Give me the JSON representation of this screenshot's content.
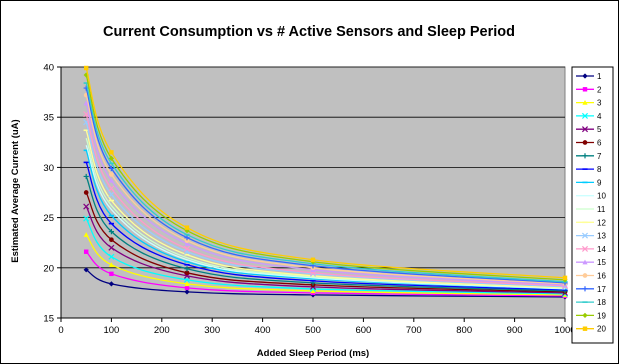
{
  "chart_data": {
    "type": "line",
    "title": "Current Consumption vs # Active Sensors and Sleep Period",
    "xlabel": "Added Sleep Period (ms)",
    "ylabel": "Estimated Average Current (uA)",
    "xlim": [
      0,
      1000
    ],
    "ylim": [
      15,
      40
    ],
    "xticks": [
      0,
      100,
      200,
      300,
      400,
      500,
      600,
      700,
      800,
      900,
      1000
    ],
    "yticks": [
      15,
      20,
      25,
      30,
      35,
      40
    ],
    "grid": "horizontal",
    "legend_position": "right",
    "x": [
      50,
      100,
      250,
      500,
      1000
    ],
    "series": [
      {
        "name": "1",
        "color": "#000080",
        "marker": "diamond",
        "values": [
          19.8,
          18.4,
          17.6,
          17.3,
          17.1
        ]
      },
      {
        "name": "2",
        "color": "#ff00ff",
        "marker": "square",
        "values": [
          21.6,
          19.4,
          18.0,
          17.5,
          17.2
        ]
      },
      {
        "name": "3",
        "color": "#ffff00",
        "marker": "triangle",
        "values": [
          23.3,
          20.3,
          18.4,
          17.7,
          17.3
        ]
      },
      {
        "name": "4",
        "color": "#00ffff",
        "marker": "x",
        "values": [
          24.9,
          21.1,
          18.8,
          17.9,
          17.4
        ]
      },
      {
        "name": "5",
        "color": "#800080",
        "marker": "x",
        "values": [
          26.1,
          22.0,
          19.2,
          18.1,
          17.5
        ]
      },
      {
        "name": "6",
        "color": "#800000",
        "marker": "circle",
        "values": [
          27.5,
          22.8,
          19.5,
          18.3,
          17.6
        ]
      },
      {
        "name": "7",
        "color": "#008080",
        "marker": "plus",
        "values": [
          29.1,
          23.6,
          19.9,
          18.5,
          17.7
        ]
      },
      {
        "name": "8",
        "color": "#0000ff",
        "marker": "dash",
        "values": [
          30.5,
          24.4,
          20.3,
          18.7,
          17.8
        ]
      },
      {
        "name": "9",
        "color": "#00ccff",
        "marker": "dash",
        "values": [
          31.7,
          25.2,
          20.6,
          18.9,
          17.9
        ]
      },
      {
        "name": "10",
        "color": "#ccffff",
        "marker": "none",
        "values": [
          32.2,
          25.8,
          20.8,
          19.0,
          17.9
        ]
      },
      {
        "name": "11",
        "color": "#ccffcc",
        "marker": "none",
        "values": [
          32.9,
          26.2,
          21.0,
          19.1,
          18.0
        ]
      },
      {
        "name": "12",
        "color": "#ffff99",
        "marker": "dash",
        "values": [
          33.7,
          26.7,
          21.3,
          19.2,
          18.0
        ]
      },
      {
        "name": "13",
        "color": "#99ccff",
        "marker": "x",
        "values": [
          34.5,
          27.3,
          21.6,
          19.4,
          18.1
        ]
      },
      {
        "name": "14",
        "color": "#ff99cc",
        "marker": "x",
        "values": [
          35.3,
          27.9,
          21.9,
          19.5,
          18.2
        ]
      },
      {
        "name": "15",
        "color": "#cc99ff",
        "marker": "triangle",
        "values": [
          36.4,
          28.7,
          22.4,
          19.8,
          18.3
        ]
      },
      {
        "name": "16",
        "color": "#ffcc99",
        "marker": "circle",
        "values": [
          37.2,
          29.3,
          22.7,
          20.0,
          18.4
        ]
      },
      {
        "name": "17",
        "color": "#3366ff",
        "marker": "plus",
        "values": [
          37.9,
          29.9,
          23.0,
          20.2,
          18.5
        ]
      },
      {
        "name": "18",
        "color": "#33cccc",
        "marker": "dash",
        "values": [
          38.4,
          30.4,
          23.3,
          20.4,
          18.6
        ]
      },
      {
        "name": "19",
        "color": "#99cc00",
        "marker": "diamond",
        "values": [
          39.2,
          30.9,
          23.7,
          20.6,
          18.8
        ]
      },
      {
        "name": "20",
        "color": "#ffcc00",
        "marker": "square",
        "values": [
          39.9,
          31.5,
          24.0,
          20.8,
          19.0
        ]
      }
    ]
  },
  "colors": {
    "plot_background": "#c0c0c0",
    "gridline": "#000000",
    "chart_border": "#000000"
  }
}
